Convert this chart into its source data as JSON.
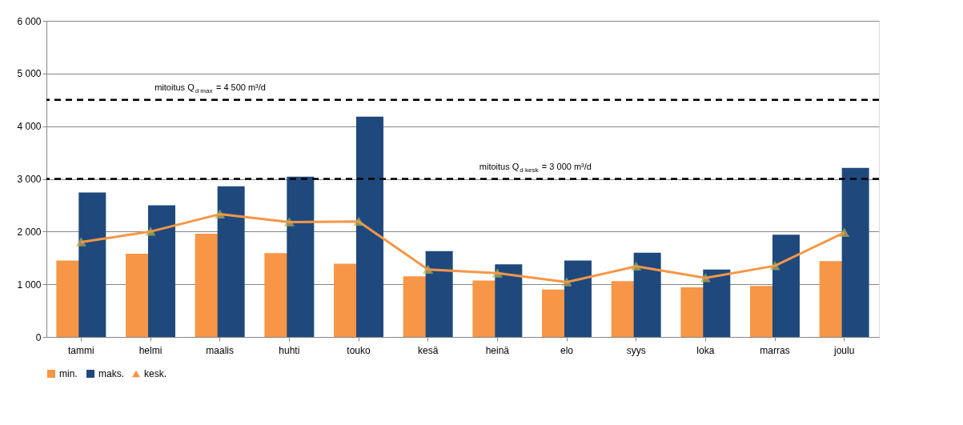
{
  "chart_data": {
    "type": "bar",
    "categories": [
      "tammi",
      "helmi",
      "maalis",
      "huhti",
      "touko",
      "kesä",
      "heinä",
      "elo",
      "syys",
      "loka",
      "marras",
      "joulu"
    ],
    "series": [
      {
        "name": "min.",
        "color": "#f79646",
        "values": [
          1450,
          1580,
          1960,
          1590,
          1390,
          1150,
          1070,
          900,
          1060,
          940,
          970,
          1440
        ]
      },
      {
        "name": "maks.",
        "color": "#1f497d",
        "values": [
          2740,
          2500,
          2860,
          3040,
          4180,
          1630,
          1380,
          1450,
          1600,
          1280,
          1940,
          3210
        ]
      },
      {
        "name": "kesk.",
        "type": "line",
        "color": "#f79646",
        "marker": "triangle",
        "values": [
          1800,
          2000,
          2330,
          2180,
          2190,
          1280,
          1210,
          1040,
          1340,
          1120,
          1350,
          1980
        ]
      }
    ],
    "ylim": [
      0,
      6000
    ],
    "yticks": [
      0,
      {
        "value": 1000,
        "label": "1 000"
      },
      {
        "value": 2000,
        "label": "2 000"
      },
      {
        "value": 3000,
        "label": "3 000"
      },
      {
        "value": 4000,
        "label": "4 000"
      },
      {
        "value": 5000,
        "label": "5 000"
      },
      {
        "value": 6000,
        "label": "6 000"
      }
    ],
    "ref_lines": [
      {
        "axis": "y",
        "value": 4500,
        "label": "mitoitus Q$_{d max}$ = 4 500 m³/d",
        "color": "#000000",
        "line_style": "dashed"
      },
      {
        "axis": "y",
        "value": 3000,
        "label": "mitoitus Q$_{d kesk}$ = 3 000 m³/d",
        "color": "#000000",
        "line_style": "dashed"
      }
    ],
    "grid": "y",
    "legend": "bottom"
  }
}
